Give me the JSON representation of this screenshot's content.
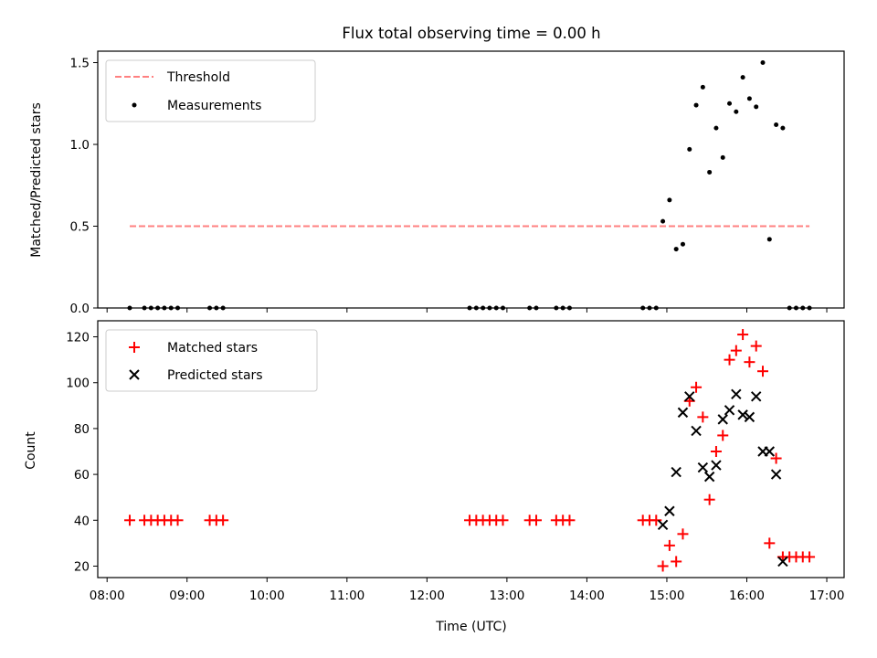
{
  "figure": {
    "title": "Flux total observing time = 0.00 h"
  },
  "chart_data": [
    {
      "type": "scatter",
      "panel": "top",
      "ylabel": "Matched/Predicted stars",
      "xlabel": "",
      "ylim": [
        0,
        1.57
      ],
      "xlim": [
        "07:53",
        "17:13"
      ],
      "yticks": [
        0.0,
        0.5,
        1.0,
        1.5
      ],
      "ytick_labels": [
        "0.0",
        "0.5",
        "1.0",
        "1.5"
      ],
      "legend": {
        "position": "upper left",
        "entries": [
          "Threshold",
          "Measurements"
        ]
      },
      "series": [
        {
          "name": "Threshold",
          "kind": "line",
          "style": "dashed",
          "color": "#ff8080",
          "x": [
            "08:17",
            "16:47"
          ],
          "y": [
            0.5,
            0.5
          ]
        },
        {
          "name": "Measurements",
          "kind": "points",
          "color": "#000000",
          "x": [
            "08:17",
            "08:28",
            "08:33",
            "08:38",
            "08:43",
            "08:48",
            "08:53",
            "09:17",
            "09:22",
            "09:27",
            "12:32",
            "12:37",
            "12:42",
            "12:47",
            "12:52",
            "12:57",
            "13:17",
            "13:22",
            "13:37",
            "13:42",
            "13:47",
            "14:42",
            "14:47",
            "14:52",
            "14:57",
            "15:02",
            "15:07",
            "15:12",
            "15:17",
            "15:22",
            "15:27",
            "15:32",
            "15:37",
            "15:42",
            "15:47",
            "15:52",
            "15:57",
            "16:02",
            "16:07",
            "16:12",
            "16:17",
            "16:22",
            "16:27",
            "16:32",
            "16:37",
            "16:42",
            "16:47"
          ],
          "y": [
            0,
            0,
            0,
            0,
            0,
            0,
            0,
            0,
            0,
            0,
            0,
            0,
            0,
            0,
            0,
            0,
            0,
            0,
            0,
            0,
            0,
            0,
            0,
            0,
            0.53,
            0.66,
            0.36,
            0.39,
            0.97,
            1.24,
            1.35,
            0.83,
            1.1,
            0.92,
            1.25,
            1.2,
            1.41,
            1.28,
            1.23,
            1.5,
            0.42,
            1.12,
            1.1,
            0,
            0,
            0,
            0
          ]
        }
      ]
    },
    {
      "type": "scatter",
      "panel": "bottom",
      "ylabel": "Count",
      "xlabel": "Time (UTC)",
      "ylim": [
        15,
        127
      ],
      "xlim": [
        "07:53",
        "17:13"
      ],
      "yticks": [
        20,
        40,
        60,
        80,
        100,
        120
      ],
      "ytick_labels": [
        "20",
        "40",
        "60",
        "80",
        "100",
        "120"
      ],
      "xticks": [
        "08:00",
        "09:00",
        "10:00",
        "11:00",
        "12:00",
        "13:00",
        "14:00",
        "15:00",
        "16:00",
        "17:00"
      ],
      "legend": {
        "position": "upper left",
        "entries": [
          "Matched stars",
          "Predicted stars"
        ]
      },
      "series": [
        {
          "name": "Matched stars",
          "marker": "plus",
          "color": "#ff0000",
          "x": [
            "08:17",
            "08:28",
            "08:33",
            "08:38",
            "08:43",
            "08:48",
            "08:53",
            "09:17",
            "09:22",
            "09:27",
            "12:32",
            "12:37",
            "12:42",
            "12:47",
            "12:52",
            "12:57",
            "13:17",
            "13:22",
            "13:37",
            "13:42",
            "13:47",
            "14:42",
            "14:47",
            "14:52",
            "14:57",
            "15:02",
            "15:07",
            "15:12",
            "15:17",
            "15:22",
            "15:27",
            "15:32",
            "15:37",
            "15:42",
            "15:47",
            "15:52",
            "15:57",
            "16:02",
            "16:07",
            "16:12",
            "16:17",
            "16:22",
            "16:27",
            "16:32",
            "16:37",
            "16:42",
            "16:47"
          ],
          "y": [
            40,
            40,
            40,
            40,
            40,
            40,
            40,
            40,
            40,
            40,
            40,
            40,
            40,
            40,
            40,
            40,
            40,
            40,
            40,
            40,
            40,
            40,
            40,
            40,
            20,
            29,
            22,
            34,
            92,
            98,
            85,
            49,
            70,
            77,
            110,
            114,
            121,
            109,
            116,
            105,
            30,
            67,
            24,
            24,
            24,
            24,
            24
          ]
        },
        {
          "name": "Predicted stars",
          "marker": "x",
          "color": "#000000",
          "x": [
            "14:57",
            "15:02",
            "15:07",
            "15:12",
            "15:17",
            "15:22",
            "15:27",
            "15:32",
            "15:37",
            "15:42",
            "15:47",
            "15:52",
            "15:57",
            "16:02",
            "16:07",
            "16:12",
            "16:17",
            "16:22",
            "16:27"
          ],
          "y": [
            38,
            44,
            61,
            87,
            94,
            79,
            63,
            59,
            64,
            84,
            88,
            95,
            86,
            85,
            94,
            70,
            70,
            60,
            22
          ]
        }
      ]
    }
  ]
}
